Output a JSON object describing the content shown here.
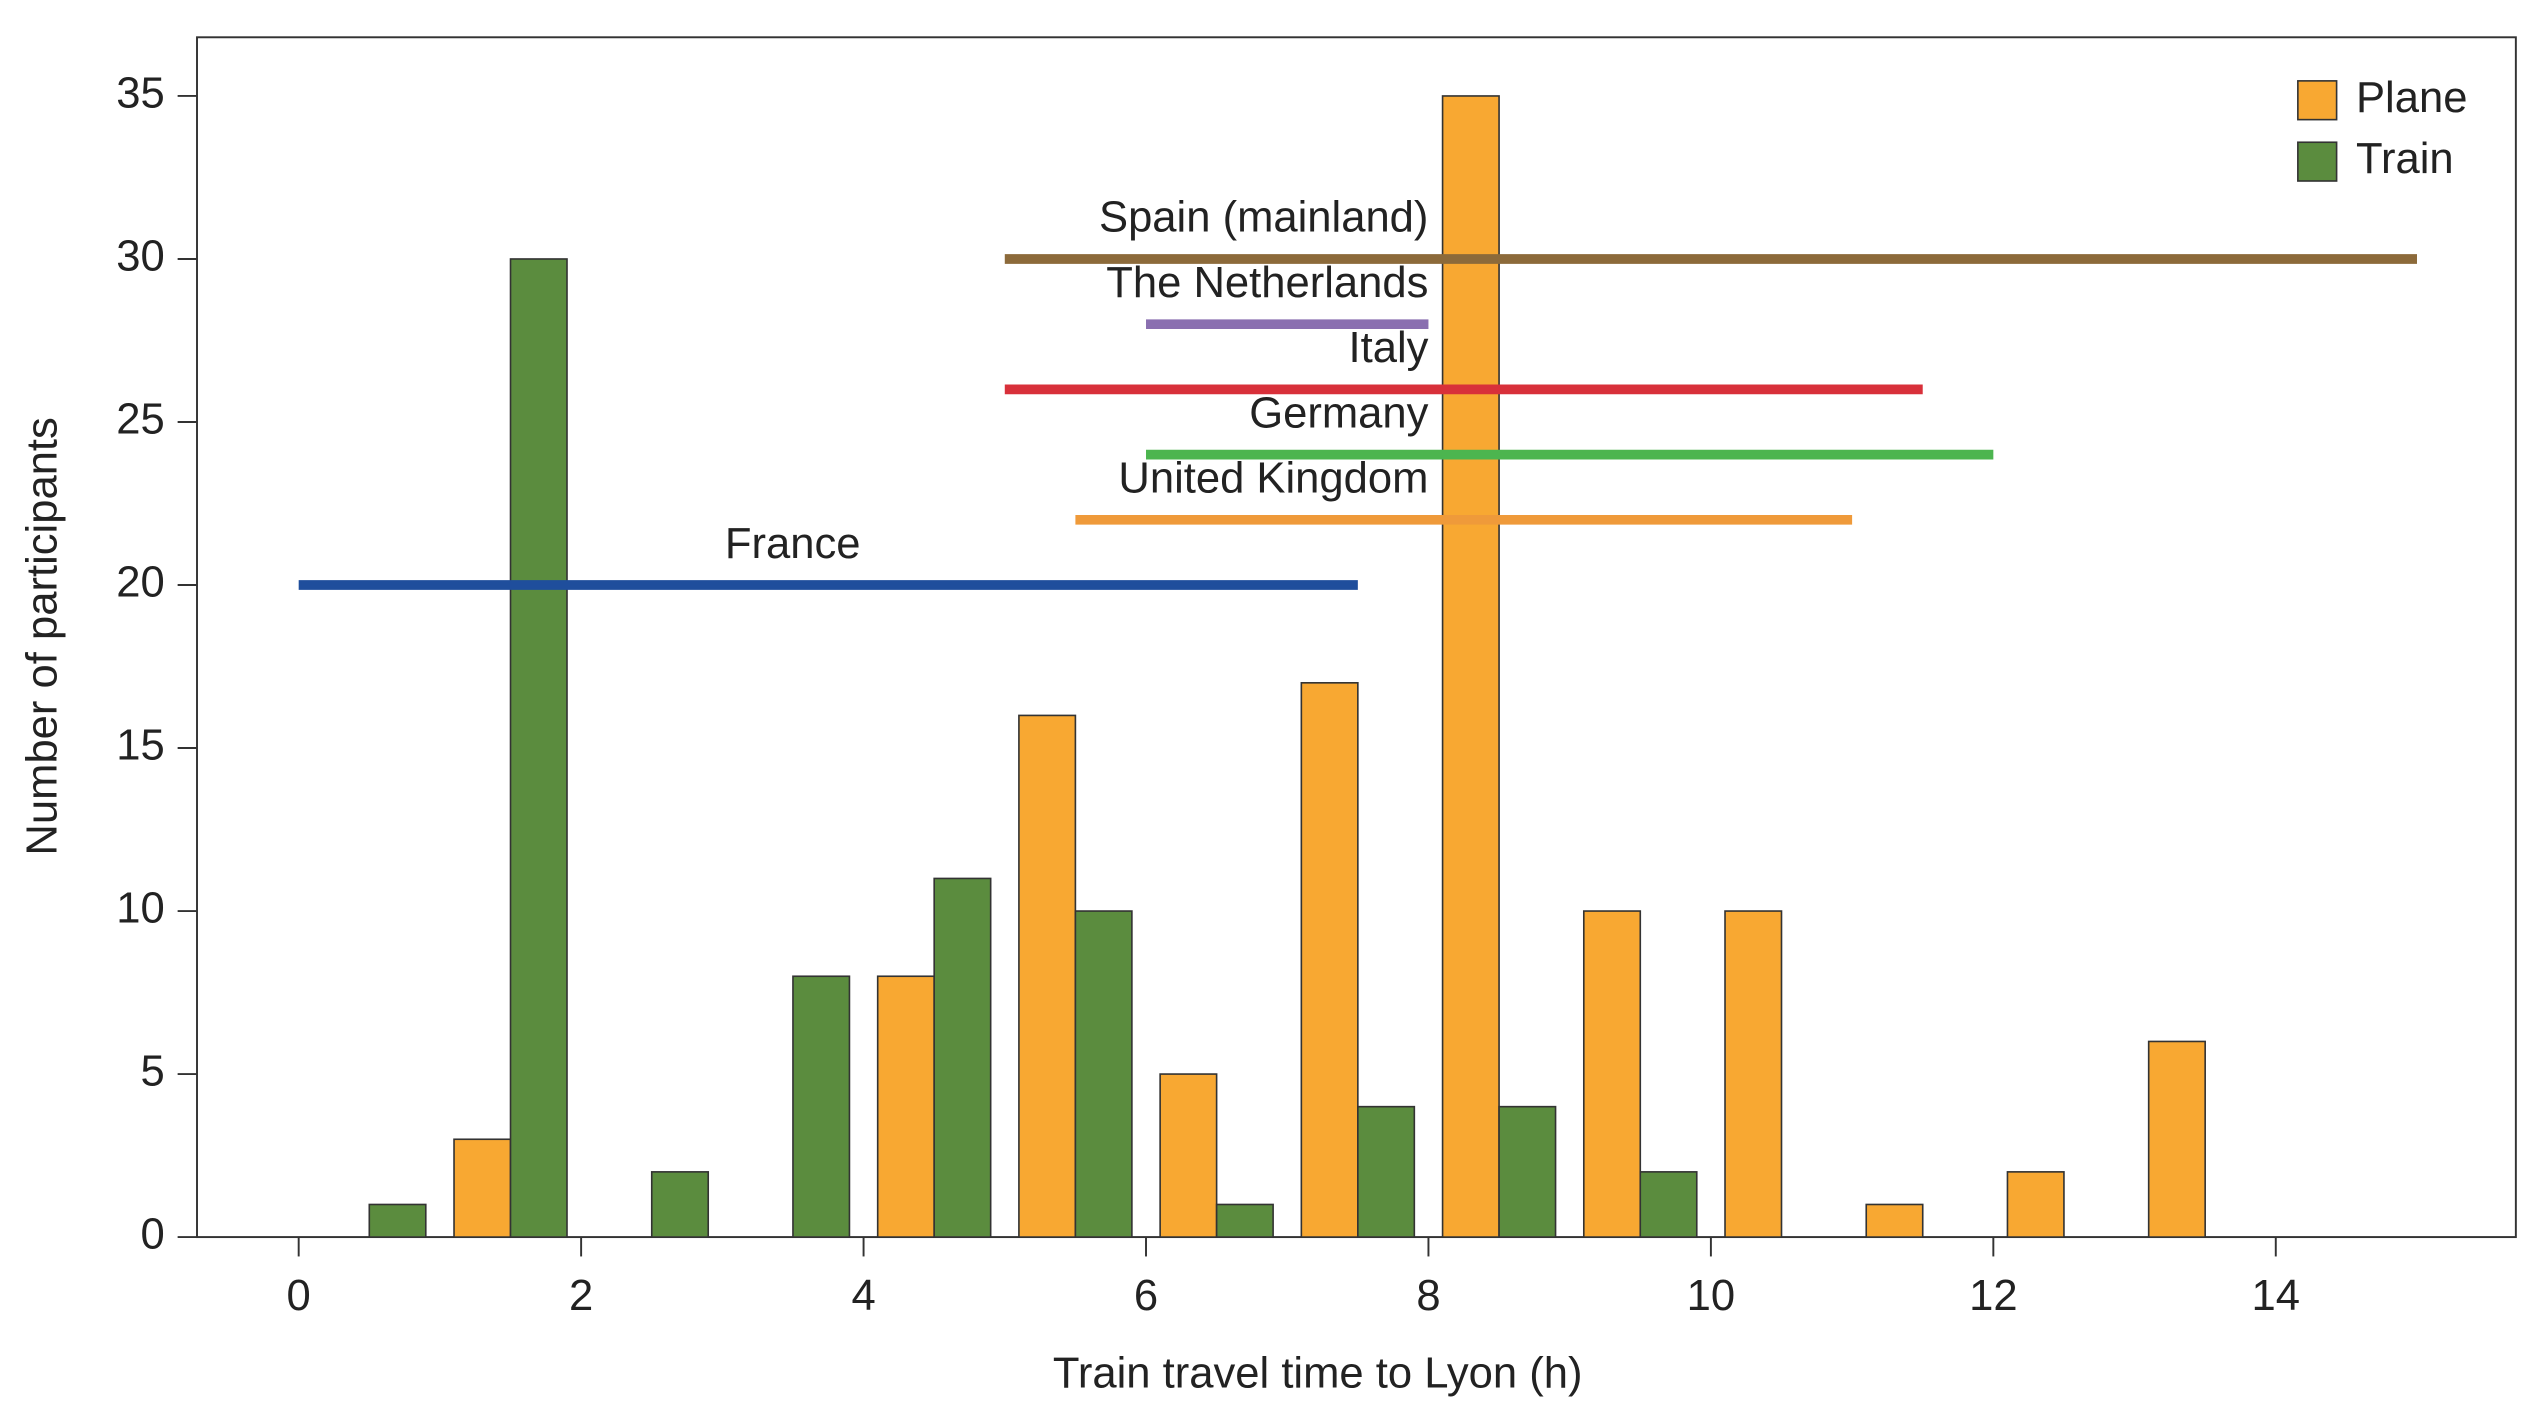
{
  "chart_data": {
    "type": "grouped-histogram",
    "xlabel": "Train travel time to Lyon (h)",
    "ylabel": "Number of participants",
    "bins": [
      0,
      1,
      2,
      3,
      4,
      5,
      6,
      7,
      8,
      9,
      10,
      11,
      12,
      13,
      14
    ],
    "series": [
      {
        "name": "Plane",
        "color": "#f8a832",
        "values": [
          0,
          3,
          0,
          0,
          8,
          16,
          5,
          17,
          35,
          10,
          10,
          1,
          2,
          6
        ]
      },
      {
        "name": "Train",
        "color": "#5b8c3e",
        "values": [
          1,
          30,
          2,
          8,
          11,
          10,
          1,
          4,
          4,
          2,
          0,
          0,
          0,
          0
        ]
      }
    ],
    "ranges": [
      {
        "name": "France",
        "color": "#1f4e9c",
        "start": 0,
        "end": 7.5,
        "y": 20
      },
      {
        "name": "United Kingdom",
        "color": "#ef9a3a",
        "start": 5.5,
        "end": 11,
        "y": 22
      },
      {
        "name": "Germany",
        "color": "#4cb54f",
        "start": 6,
        "end": 12,
        "y": 24
      },
      {
        "name": "Italy",
        "color": "#d8303a",
        "start": 5,
        "end": 11.5,
        "y": 26
      },
      {
        "name": "The Netherlands",
        "color": "#8a6fb0",
        "start": 6,
        "end": 8,
        "y": 28
      },
      {
        "name": "Spain (mainland)",
        "color": "#8c6a3a",
        "start": 5,
        "end": 15,
        "y": 30
      }
    ],
    "xlim": [
      -0.72,
      15.7
    ],
    "ylim": [
      0,
      36.8
    ],
    "xticks": [
      0,
      2,
      4,
      6,
      8,
      10,
      12,
      14
    ],
    "yticks": [
      0,
      5,
      10,
      15,
      20,
      25,
      30,
      35
    ],
    "legend": "top-right"
  }
}
